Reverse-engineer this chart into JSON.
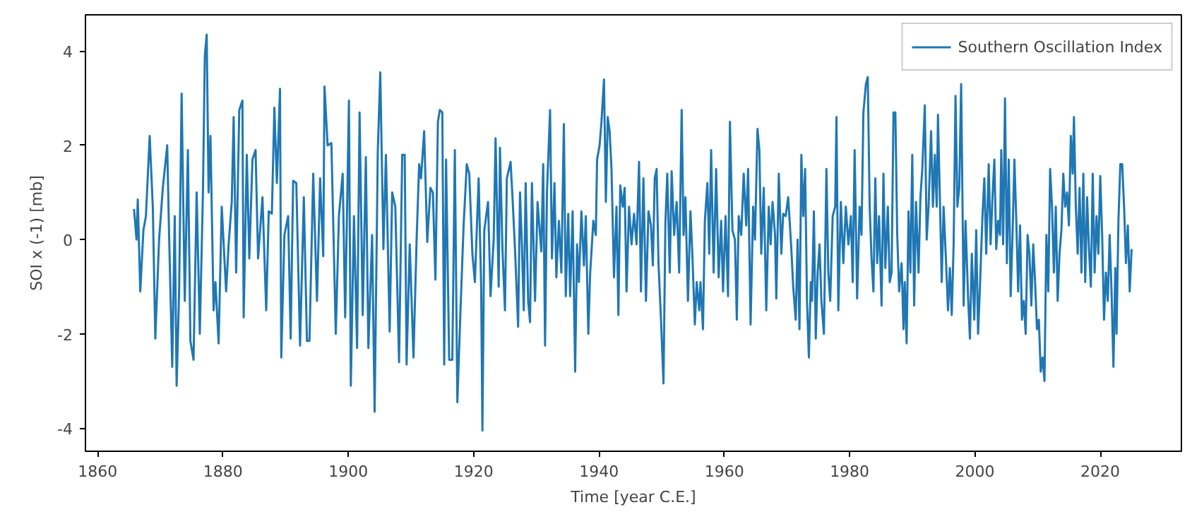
{
  "chart_data": {
    "type": "line",
    "xlabel": "Time [year C.E.]",
    "ylabel": "SOI x (-1) [mb]",
    "xlim": [
      1858.05,
      2032.95
    ],
    "xticks": [
      1860,
      1880,
      1900,
      1920,
      1940,
      1960,
      1980,
      2000,
      2020
    ],
    "ylim": [
      -4.49,
      4.77
    ],
    "yticks": [
      -4,
      -2,
      0,
      2,
      4
    ],
    "grid": false,
    "legend": "top right",
    "marker": "none",
    "line_style": "solid",
    "series": [
      {
        "name": "Southern Oscillation Index",
        "color": "#1f77b4",
        "x": [
          1865.8,
          1866.2,
          1866.4,
          1866.8,
          1867.3,
          1867.7,
          1868.3,
          1868.8,
          1869.2,
          1869.8,
          1870.4,
          1871.1,
          1871.4,
          1871.9,
          1872.3,
          1872.6,
          1873.0,
          1873.4,
          1873.9,
          1874.4,
          1874.8,
          1875.3,
          1875.8,
          1876.3,
          1876.8,
          1877.1,
          1877.4,
          1877.7,
          1878.0,
          1878.5,
          1878.8,
          1879.3,
          1879.8,
          1880.5,
          1880.9,
          1881.4,
          1881.7,
          1882.1,
          1882.6,
          1883.1,
          1883.3,
          1883.8,
          1884.2,
          1884.7,
          1885.2,
          1885.6,
          1886.3,
          1886.9,
          1887.3,
          1887.8,
          1888.2,
          1888.6,
          1889.1,
          1889.3,
          1889.8,
          1890.4,
          1890.8,
          1891.2,
          1891.7,
          1892.3,
          1892.9,
          1893.4,
          1893.8,
          1894.4,
          1895.0,
          1895.5,
          1896.0,
          1896.2,
          1896.7,
          1897.3,
          1898.0,
          1898.5,
          1899.1,
          1899.5,
          1900.1,
          1900.4,
          1900.9,
          1901.4,
          1901.8,
          1902.3,
          1902.8,
          1903.2,
          1903.8,
          1904.2,
          1904.7,
          1905.1,
          1905.6,
          1906.0,
          1906.6,
          1907.0,
          1907.5,
          1908.1,
          1908.6,
          1909.0,
          1909.3,
          1909.8,
          1910.4,
          1910.9,
          1911.3,
          1911.6,
          1912.1,
          1912.6,
          1913.1,
          1913.5,
          1913.9,
          1914.3,
          1914.6,
          1915.0,
          1915.3,
          1915.6,
          1916.1,
          1916.6,
          1917.0,
          1917.4,
          1917.9,
          1918.4,
          1918.9,
          1919.3,
          1919.8,
          1920.2,
          1920.8,
          1921.2,
          1921.4,
          1921.7,
          1922.3,
          1922.7,
          1923.2,
          1923.5,
          1924.0,
          1924.2,
          1924.6,
          1925.0,
          1925.3,
          1925.9,
          1926.2,
          1926.6,
          1927.1,
          1927.4,
          1927.7,
          1928.0,
          1928.3,
          1928.7,
          1929.0,
          1929.3,
          1929.8,
          1930.2,
          1930.8,
          1931.1,
          1931.4,
          1931.7,
          1932.2,
          1932.5,
          1932.9,
          1933.2,
          1933.6,
          1934.0,
          1934.4,
          1934.7,
          1935.1,
          1935.4,
          1935.8,
          1936.2,
          1936.5,
          1936.8,
          1937.2,
          1937.6,
          1937.9,
          1938.3,
          1938.6,
          1939.1,
          1939.5,
          1939.7,
          1940.1,
          1940.4,
          1940.8,
          1941.1,
          1941.4,
          1941.7,
          1942.0,
          1942.4,
          1942.8,
          1943.1,
          1943.4,
          1943.8,
          1944.1,
          1944.4,
          1944.8,
          1945.2,
          1945.6,
          1946.0,
          1946.4,
          1946.7,
          1947.1,
          1947.5,
          1947.9,
          1948.3,
          1948.6,
          1948.9,
          1949.2,
          1949.5,
          1949.9,
          1950.3,
          1950.6,
          1950.9,
          1951.3,
          1951.6,
          1952.0,
          1952.4,
          1952.8,
          1953.2,
          1953.5,
          1953.8,
          1954.2,
          1954.6,
          1954.9,
          1955.3,
          1955.6,
          1956.0,
          1956.2,
          1956.6,
          1956.9,
          1957.3,
          1957.6,
          1957.9,
          1958.3,
          1958.7,
          1959.1,
          1959.5,
          1959.8,
          1960.2,
          1960.6,
          1960.9,
          1961.3,
          1961.7,
          1962.0,
          1962.3,
          1962.7,
          1963.1,
          1963.5,
          1963.8,
          1964.2,
          1964.6,
          1964.9,
          1965.3,
          1965.6,
          1965.9,
          1966.3,
          1966.7,
          1967.1,
          1967.4,
          1967.7,
          1968.1,
          1968.3,
          1968.7,
          1969.1,
          1969.4,
          1969.8,
          1970.2,
          1970.7,
          1971.0,
          1971.4,
          1971.7,
          1972.0,
          1972.3,
          1972.6,
          1972.9,
          1973.2,
          1973.5,
          1973.8,
          1974.0,
          1974.3,
          1974.6,
          1974.9,
          1975.2,
          1975.5,
          1975.9,
          1976.3,
          1976.6,
          1976.9,
          1977.3,
          1977.7,
          1977.9,
          1978.2,
          1978.6,
          1979.0,
          1979.4,
          1979.8,
          1980.2,
          1980.5,
          1980.8,
          1981.2,
          1981.6,
          1981.9,
          1982.2,
          1982.6,
          1982.9,
          1983.2,
          1983.5,
          1983.8,
          1984.1,
          1984.4,
          1984.7,
          1985.1,
          1985.4,
          1985.7,
          1986.1,
          1986.4,
          1986.7,
          1987.0,
          1987.3,
          1987.6,
          1987.9,
          1988.3,
          1988.6,
          1988.8,
          1989.1,
          1989.4,
          1989.7,
          1990.0,
          1990.3,
          1990.6,
          1991.0,
          1991.3,
          1991.6,
          1992.0,
          1992.3,
          1992.6,
          1993.0,
          1993.3,
          1993.6,
          1993.9,
          1994.1,
          1994.4,
          1994.7,
          1995.0,
          1995.4,
          1995.7,
          1996.0,
          1996.3,
          1996.6,
          1996.9,
          1997.2,
          1997.5,
          1997.8,
          1998.2,
          1998.5,
          1998.9,
          1999.2,
          1999.5,
          1999.9,
          2000.2,
          2000.5,
          2000.8,
          2001.2,
          2001.5,
          2001.8,
          2002.2,
          2002.5,
          2002.8,
          2003.1,
          2003.4,
          2003.7,
          2004.0,
          2004.2,
          2004.5,
          2004.8,
          2005.1,
          2005.4,
          2005.7,
          2006.0,
          2006.3,
          2006.6,
          2006.9,
          2007.2,
          2007.5,
          2007.8,
          2008.1,
          2008.4,
          2008.7,
          2009.0,
          2009.3,
          2009.6,
          2009.9,
          2010.2,
          2010.5,
          2010.8,
          2011.1,
          2011.4,
          2011.7,
          2012.0,
          2012.3,
          2012.6,
          2012.9,
          2013.2,
          2013.5,
          2013.8,
          2014.1,
          2014.4,
          2014.7,
          2015.0,
          2015.3,
          2015.6,
          2015.8,
          2016.1,
          2016.4,
          2016.7,
          2017.0,
          2017.3,
          2017.6,
          2017.9,
          2018.2,
          2018.5,
          2018.8,
          2019.1,
          2019.4,
          2019.7,
          2020.0,
          2020.3,
          2020.6,
          2020.9,
          2021.2,
          2021.5,
          2021.8,
          2022.1,
          2022.4,
          2022.6,
          2022.9,
          2023.2,
          2023.5,
          2023.8,
          2024.1,
          2024.4,
          2024.7,
          2025.0
        ],
        "values": [
          0.65,
          0.0,
          0.85,
          -1.1,
          0.2,
          0.5,
          2.2,
          0.7,
          -2.1,
          0.0,
          1.1,
          2.0,
          0.1,
          -2.7,
          0.5,
          -3.1,
          -1.1,
          3.1,
          -1.3,
          1.9,
          -2.15,
          -2.55,
          1.0,
          -2.0,
          1.0,
          3.9,
          4.35,
          1.0,
          2.2,
          -1.5,
          -0.9,
          -2.2,
          0.7,
          -1.1,
          -0.1,
          0.8,
          2.6,
          -0.7,
          2.75,
          2.95,
          -1.65,
          1.8,
          -0.4,
          1.7,
          1.9,
          -0.4,
          0.9,
          -1.5,
          0.6,
          0.55,
          2.8,
          1.2,
          3.2,
          -2.5,
          0.1,
          0.5,
          -2.1,
          1.25,
          1.2,
          -2.25,
          0.9,
          -2.15,
          -2.15,
          1.4,
          -1.3,
          1.3,
          -0.35,
          3.25,
          2.0,
          2.05,
          -2.0,
          0.5,
          1.4,
          -1.65,
          2.95,
          -3.1,
          0.5,
          -2.3,
          2.7,
          -1.6,
          1.75,
          -2.3,
          0.1,
          -3.65,
          1.85,
          3.55,
          -0.2,
          1.8,
          -1.95,
          1.0,
          0.7,
          -2.6,
          1.8,
          1.8,
          -2.65,
          -0.1,
          -2.5,
          0.0,
          1.6,
          1.3,
          2.3,
          -0.05,
          1.1,
          1.0,
          -0.85,
          2.5,
          2.75,
          2.7,
          -2.65,
          1.7,
          -2.55,
          -2.55,
          1.9,
          -3.45,
          -1.5,
          0.3,
          1.6,
          1.4,
          -0.3,
          -0.9,
          1.3,
          -1.0,
          -4.05,
          0.2,
          0.8,
          -1.2,
          0.0,
          2.15,
          -1.0,
          1.95,
          -0.2,
          -1.5,
          1.3,
          1.65,
          0.9,
          -0.2,
          -1.85,
          1.0,
          -0.1,
          -1.5,
          1.2,
          -1.3,
          -1.75,
          1.2,
          -1.3,
          0.8,
          -0.25,
          1.6,
          -2.25,
          1.0,
          2.75,
          -0.4,
          1.2,
          -0.8,
          0.4,
          -0.7,
          2.45,
          -1.2,
          0.55,
          -1.2,
          0.6,
          -2.8,
          -0.1,
          -0.9,
          0.6,
          -0.55,
          0.5,
          -2.0,
          -0.7,
          0.4,
          0.1,
          1.7,
          2.0,
          2.5,
          3.4,
          0.8,
          2.6,
          2.3,
          1.5,
          -0.8,
          0.7,
          -1.6,
          1.15,
          0.7,
          1.1,
          -1.1,
          0.7,
          -0.1,
          0.55,
          -0.1,
          1.65,
          -1.1,
          1.3,
          -1.3,
          0.6,
          0.3,
          -0.55,
          1.3,
          1.5,
          -0.5,
          -1.7,
          -3.05,
          0.35,
          1.4,
          -0.7,
          1.45,
          0.1,
          0.8,
          -0.7,
          2.75,
          0.1,
          0.9,
          -1.3,
          0.6,
          -0.3,
          -1.8,
          -0.9,
          -1.5,
          -0.9,
          -1.9,
          0.4,
          1.2,
          -0.3,
          1.9,
          -0.7,
          1.5,
          -0.8,
          0.4,
          -1.1,
          0.5,
          -1.2,
          2.5,
          0.2,
          0.0,
          -1.7,
          0.5,
          0.1,
          1.4,
          0.3,
          1.5,
          -1.8,
          0.7,
          0.0,
          2.35,
          1.9,
          -0.3,
          1.1,
          -1.5,
          0.7,
          -0.1,
          0.8,
          0.1,
          -1.25,
          1.4,
          -0.3,
          0.55,
          0.5,
          0.9,
          -0.2,
          -1.0,
          -1.7,
          0.0,
          -1.9,
          1.8,
          0.5,
          1.5,
          -1.3,
          -2.5,
          -0.9,
          -1.3,
          0.6,
          -2.1,
          -0.7,
          -0.1,
          -1.3,
          -2.0,
          1.5,
          -0.7,
          -1.3,
          0.5,
          0.7,
          2.6,
          -1.5,
          0.8,
          -0.5,
          0.7,
          -0.1,
          0.5,
          -0.9,
          1.9,
          -1.25,
          0.7,
          0.1,
          2.7,
          3.3,
          3.45,
          0.7,
          -0.4,
          -1.1,
          1.3,
          -0.5,
          0.5,
          -1.4,
          1.4,
          -0.6,
          0.7,
          -0.9,
          -0.7,
          2.7,
          2.7,
          0.1,
          -1.1,
          -0.5,
          -1.9,
          -0.9,
          -2.2,
          0.6,
          -0.7,
          1.8,
          -1.4,
          0.8,
          -0.7,
          0.9,
          1.5,
          2.85,
          0.0,
          0.7,
          2.3,
          0.7,
          1.8,
          0.7,
          2.65,
          0.9,
          -0.9,
          0.7,
          -0.5,
          -1.5,
          -0.6,
          -1.6,
          -0.1,
          3.05,
          0.7,
          1.1,
          3.3,
          -1.4,
          0.4,
          -1.2,
          -2.1,
          -0.3,
          -1.7,
          0.2,
          -2.0,
          -1.0,
          0.5,
          1.3,
          -0.3,
          1.6,
          -0.1,
          0.9,
          1.7,
          -0.2,
          0.4,
          0.1,
          1.9,
          -0.1,
          3.0,
          -0.5,
          1.7,
          -1.2,
          0.1,
          1.7,
          0.4,
          -1.1,
          0.3,
          -1.7,
          -1.3,
          -2.0,
          0.1,
          -0.3,
          -1.4,
          -0.1,
          -0.9,
          -1.9,
          -1.7,
          -2.8,
          -2.5,
          -3.0,
          0.1,
          -1.1,
          1.5,
          0.7,
          -0.7,
          0.7,
          -1.3,
          -0.3,
          0.2,
          1.4,
          0.7,
          1.0,
          0.3,
          2.2,
          1.4,
          2.6,
          0.7,
          -0.3,
          1.1,
          -0.7,
          1.4,
          -0.9,
          0.9,
          -0.2,
          -1.0,
          1.4,
          -0.7,
          0.5,
          -0.3,
          1.35,
          0.1,
          -1.7,
          -0.7,
          -1.3,
          0.1,
          -1.1,
          -2.7,
          -0.6,
          -2.0,
          0.4,
          1.6,
          1.6,
          0.7,
          -0.5,
          0.3,
          -1.1,
          -0.2
        ]
      }
    ]
  }
}
